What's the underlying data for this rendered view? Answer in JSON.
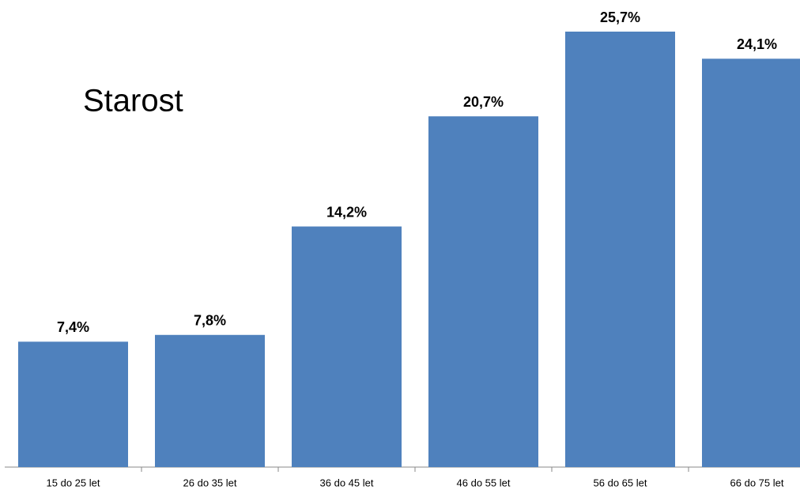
{
  "chart_data": {
    "type": "bar",
    "title": "Starost",
    "categories": [
      "15 do 25 let",
      "26 do 35 let",
      "36 do 45 let",
      "46 do 55 let",
      "56 do 65 let",
      "66 do 75 let"
    ],
    "values": [
      7.4,
      7.8,
      14.2,
      20.7,
      25.7,
      24.1
    ],
    "value_labels": [
      "7,4%",
      "7,8%",
      "14,2%",
      "20,7%",
      "25,7%",
      "24,1%"
    ],
    "color": "#4f81bd"
  }
}
